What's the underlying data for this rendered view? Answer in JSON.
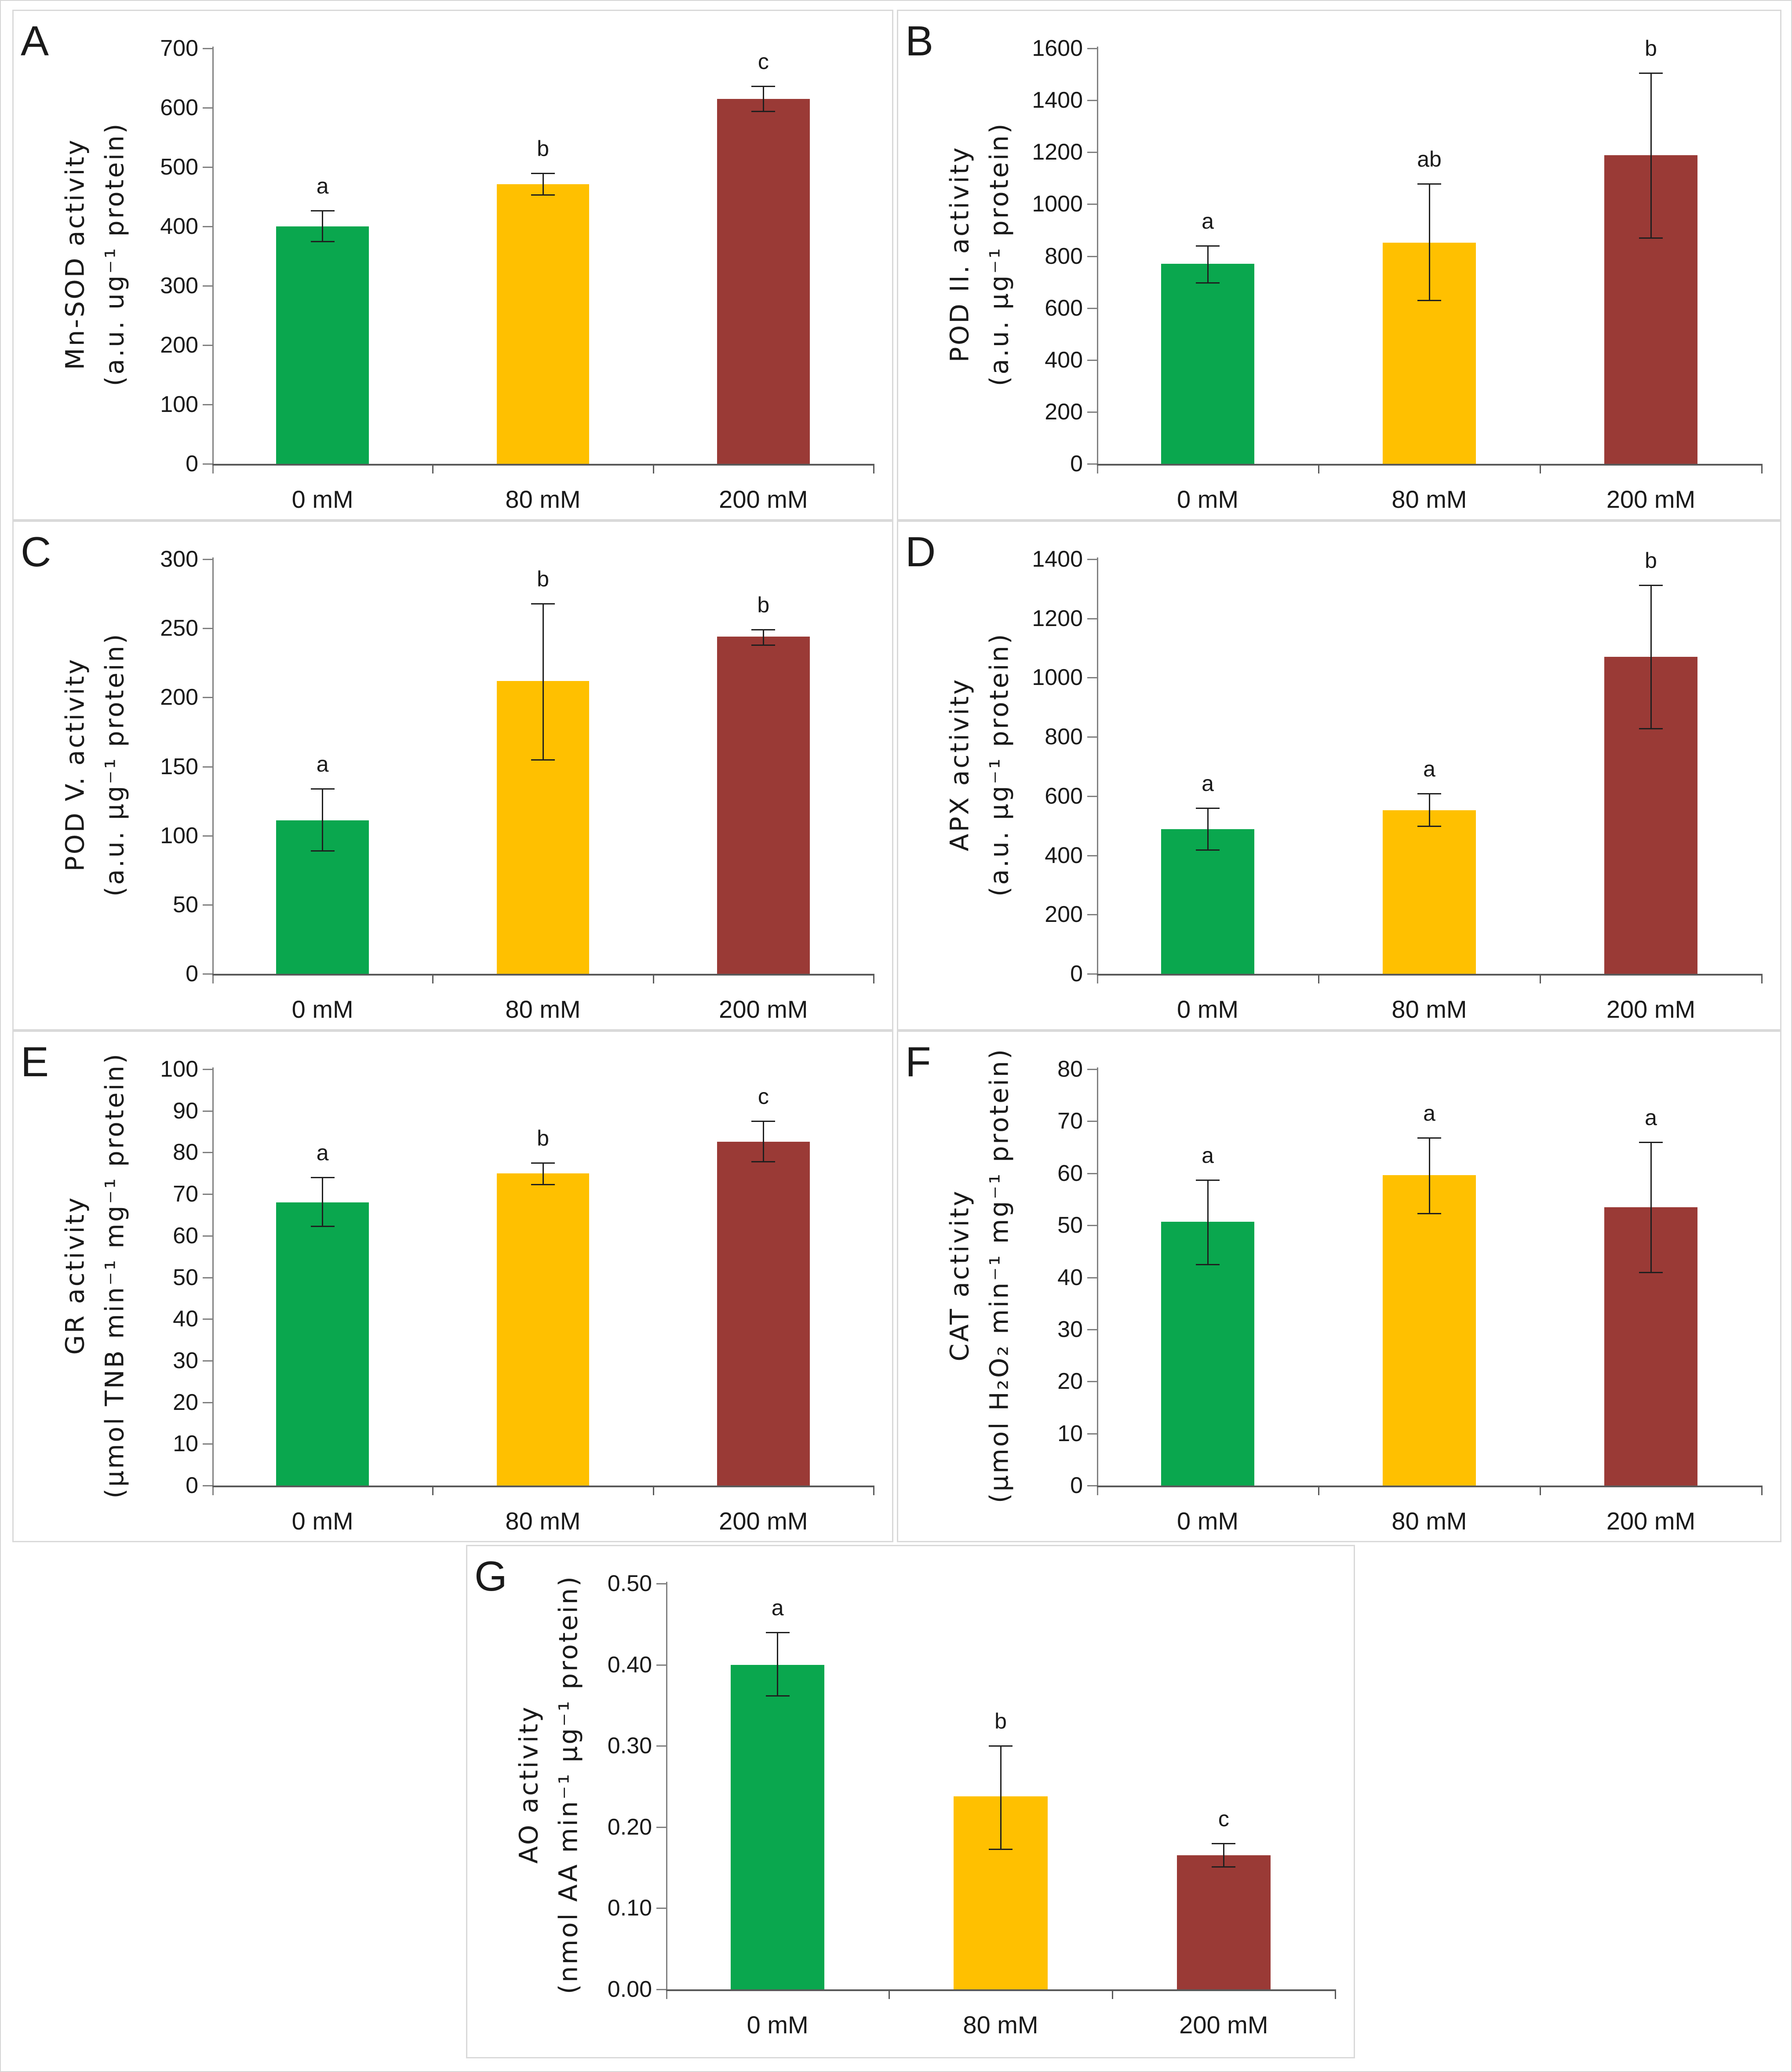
{
  "figure": {
    "background": "#ffffff",
    "panel_border_color": "#d9d9d9",
    "bar_colors": [
      "#0AA74E",
      "#FFC000",
      "#9A3A36"
    ],
    "y_axis_color": "#808080",
    "x_axis_color": "#595959",
    "error_bar_color": "#1f1f1f",
    "text_color": "#1a1a1a",
    "categories": [
      "0 mM",
      "80 mM",
      "200 mM"
    ]
  },
  "chart_data": [
    {
      "type": "bar",
      "panel": "A",
      "ylabel_line1": "Mn-SOD activity",
      "ylabel_line2": "(a.u. ug⁻¹ protein)",
      "ylim": [
        0,
        700
      ],
      "ytick_step": 100,
      "ytick_labels": [
        "0",
        "100",
        "200",
        "300",
        "400",
        "500",
        "600",
        "700"
      ],
      "categories": [
        "0 mM",
        "80 mM",
        "200 mM"
      ],
      "values": [
        400,
        471,
        615
      ],
      "err_low": [
        375,
        453,
        594
      ],
      "err_high": [
        427,
        490,
        636
      ],
      "sig_letters": [
        "a",
        "b",
        "c"
      ],
      "legend": "none",
      "grid": "off"
    },
    {
      "type": "bar",
      "panel": "B",
      "ylabel_line1": "POD II. activity",
      "ylabel_line2": "(a.u. µg⁻¹ protein)",
      "ylim": [
        0,
        1600
      ],
      "ytick_step": 200,
      "ytick_labels": [
        "0",
        "200",
        "400",
        "600",
        "800",
        "1000",
        "1200",
        "1400",
        "1600"
      ],
      "categories": [
        "0 mM",
        "80 mM",
        "200 mM"
      ],
      "values": [
        770,
        852,
        1188
      ],
      "err_low": [
        698,
        630,
        870
      ],
      "err_high": [
        840,
        1078,
        1505
      ],
      "sig_letters": [
        "a",
        "ab",
        "b"
      ],
      "legend": "none",
      "grid": "off"
    },
    {
      "type": "bar",
      "panel": "C",
      "ylabel_line1": "POD V. activity",
      "ylabel_line2": "(a.u. µg⁻¹ protein)",
      "ylim": [
        0,
        300
      ],
      "ytick_step": 50,
      "ytick_labels": [
        "0",
        "50",
        "100",
        "150",
        "200",
        "250",
        "300"
      ],
      "categories": [
        "0 mM",
        "80 mM",
        "200 mM"
      ],
      "values": [
        111,
        212,
        244
      ],
      "err_low": [
        89,
        155,
        238
      ],
      "err_high": [
        134,
        268,
        249
      ],
      "sig_letters": [
        "a",
        "b",
        "b"
      ],
      "legend": "none",
      "grid": "off"
    },
    {
      "type": "bar",
      "panel": "D",
      "ylabel_line1": "APX activity",
      "ylabel_line2": "(a.u. µg⁻¹ protein)",
      "ylim": [
        0,
        1400
      ],
      "ytick_step": 200,
      "ytick_labels": [
        "0",
        "200",
        "400",
        "600",
        "800",
        "1000",
        "1200",
        "1400"
      ],
      "categories": [
        "0 mM",
        "80 mM",
        "200 mM"
      ],
      "values": [
        489,
        553,
        1071
      ],
      "err_low": [
        419,
        499,
        828
      ],
      "err_high": [
        560,
        609,
        1312
      ],
      "sig_letters": [
        "a",
        "a",
        "b"
      ],
      "legend": "none",
      "grid": "off"
    },
    {
      "type": "bar",
      "panel": "E",
      "ylabel_line1": "GR activity",
      "ylabel_line2": "(µmol TNB min⁻¹ mg⁻¹ protein)",
      "ylim": [
        0,
        100
      ],
      "ytick_step": 10,
      "ytick_labels": [
        "0",
        "10",
        "20",
        "30",
        "40",
        "50",
        "60",
        "70",
        "80",
        "90",
        "100"
      ],
      "categories": [
        "0 mM",
        "80 mM",
        "200 mM"
      ],
      "values": [
        68,
        75,
        82.6
      ],
      "err_low": [
        62.3,
        72.3,
        77.8
      ],
      "err_high": [
        74,
        77.5,
        87.5
      ],
      "sig_letters": [
        "a",
        "b",
        "c"
      ],
      "legend": "none",
      "grid": "off"
    },
    {
      "type": "bar",
      "panel": "F",
      "ylabel_line1": "CAT activity",
      "ylabel_line2": "(µmol H₂O₂ min⁻¹ mg⁻¹ protein)",
      "ylim": [
        0,
        80
      ],
      "ytick_step": 10,
      "ytick_labels": [
        "0",
        "10",
        "20",
        "30",
        "40",
        "50",
        "60",
        "70",
        "80"
      ],
      "categories": [
        "0 mM",
        "80 mM",
        "200 mM"
      ],
      "values": [
        50.7,
        59.6,
        53.5
      ],
      "err_low": [
        42.5,
        52.3,
        41
      ],
      "err_high": [
        58.7,
        66.8,
        66
      ],
      "sig_letters": [
        "a",
        "a",
        "a"
      ],
      "legend": "none",
      "grid": "off"
    },
    {
      "type": "bar",
      "panel": "G",
      "ylabel_line1": "AO activity",
      "ylabel_line2": "(nmol AA min⁻¹ µg⁻¹ protein)",
      "ylim": [
        0,
        0.5
      ],
      "ytick_step": 0.1,
      "ytick_labels": [
        "0.00",
        "0.10",
        "0.20",
        "0.30",
        "0.40",
        "0.50"
      ],
      "categories": [
        "0 mM",
        "80 mM",
        "200 mM"
      ],
      "values": [
        0.4,
        0.238,
        0.165
      ],
      "err_low": [
        0.362,
        0.173,
        0.151
      ],
      "err_high": [
        0.44,
        0.3,
        0.18
      ],
      "sig_letters": [
        "a",
        "b",
        "c"
      ],
      "legend": "none",
      "grid": "off"
    }
  ]
}
